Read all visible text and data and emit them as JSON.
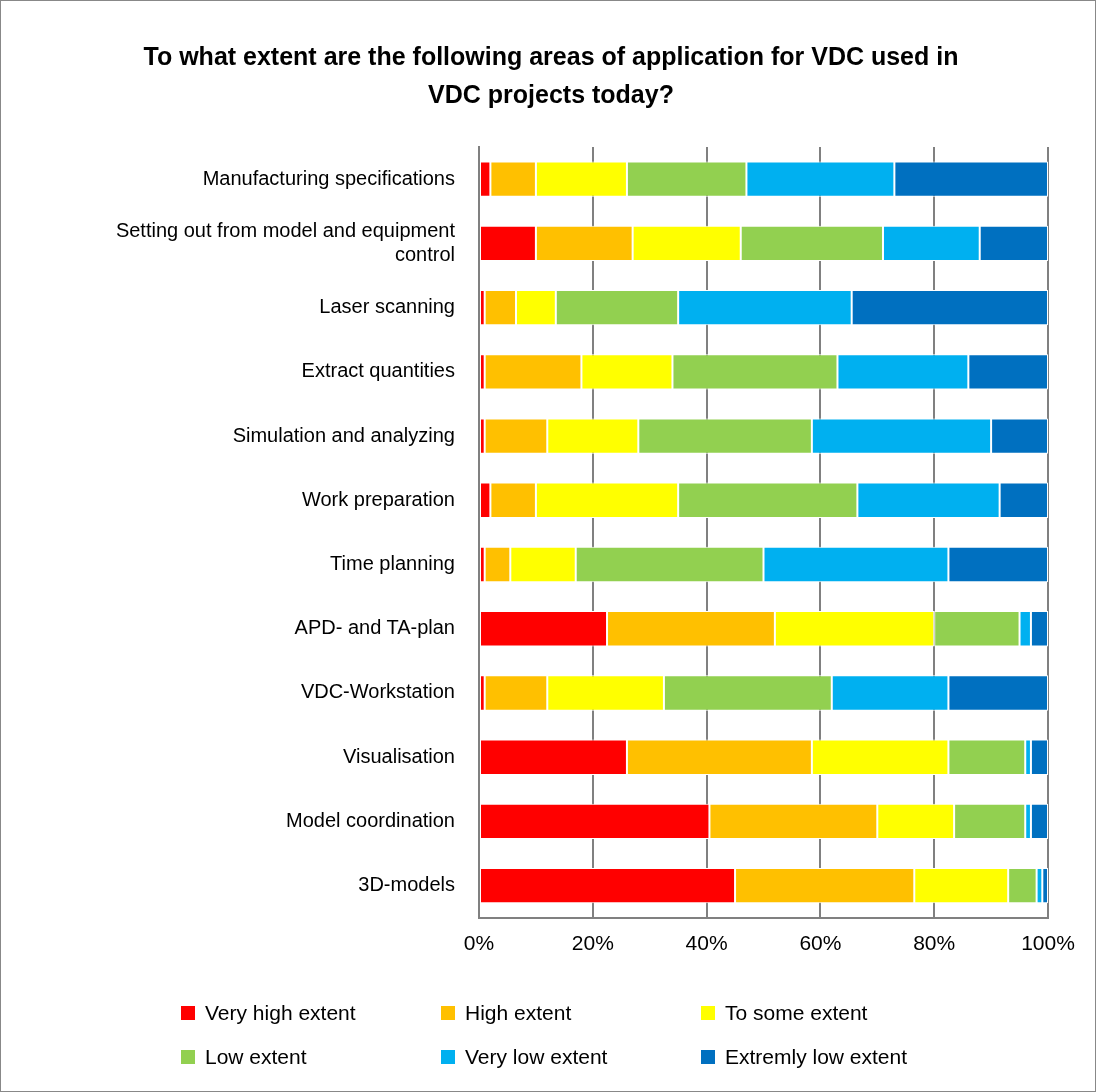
{
  "chart_data": {
    "type": "bar",
    "orientation": "horizontal",
    "stacked": true,
    "title": "To what extent are the following areas of application for VDC used in VDC projects today?",
    "categories": [
      "Manufacturing specifications",
      "Setting out from model and equipment control",
      "Laser scanning",
      "Extract quantities",
      "Simulation and analyzing",
      "Work preparation",
      "Time planning",
      "APD- and TA-plan",
      "VDC-Workstation",
      "Visualisation",
      "Model coordination",
      "3D-models"
    ],
    "series": [
      {
        "name": "Very high extent",
        "color": "#ff0000",
        "values": [
          2,
          10,
          1,
          1,
          1,
          2,
          1,
          22.5,
          1,
          26,
          40.5,
          45
        ]
      },
      {
        "name": "High extent",
        "color": "#ffc000",
        "values": [
          8,
          17,
          5.5,
          17,
          11,
          8,
          4.5,
          29.5,
          11,
          32.5,
          29.5,
          31.5
        ]
      },
      {
        "name": "To some extent",
        "color": "#ffff00",
        "values": [
          16,
          19,
          7,
          16,
          16,
          25,
          11.5,
          28,
          20.5,
          24,
          13.5,
          16.5
        ]
      },
      {
        "name": "Low extent",
        "color": "#92d050",
        "values": [
          21,
          25,
          21.5,
          29,
          30.5,
          31.5,
          33,
          15,
          29.5,
          13.5,
          12.5,
          5
        ]
      },
      {
        "name": "Very low extent",
        "color": "#00b0f0",
        "values": [
          26,
          17,
          30.5,
          23,
          31.5,
          25,
          32.5,
          2,
          20.5,
          1,
          1,
          1
        ]
      },
      {
        "name": "Extremly low extent",
        "color": "#0070c0",
        "values": [
          27,
          12,
          34.5,
          14,
          10,
          8.5,
          17.5,
          3,
          17.5,
          3,
          3,
          1
        ]
      }
    ],
    "xlim": [
      0,
      100
    ],
    "xticks": [
      {
        "value": 0,
        "label": "0%"
      },
      {
        "value": 20,
        "label": "20%"
      },
      {
        "value": 40,
        "label": "40%"
      },
      {
        "value": 60,
        "label": "60%"
      },
      {
        "value": 80,
        "label": "80%"
      },
      {
        "value": 100,
        "label": "100%"
      }
    ],
    "grid": "x",
    "legend": "bottom"
  }
}
